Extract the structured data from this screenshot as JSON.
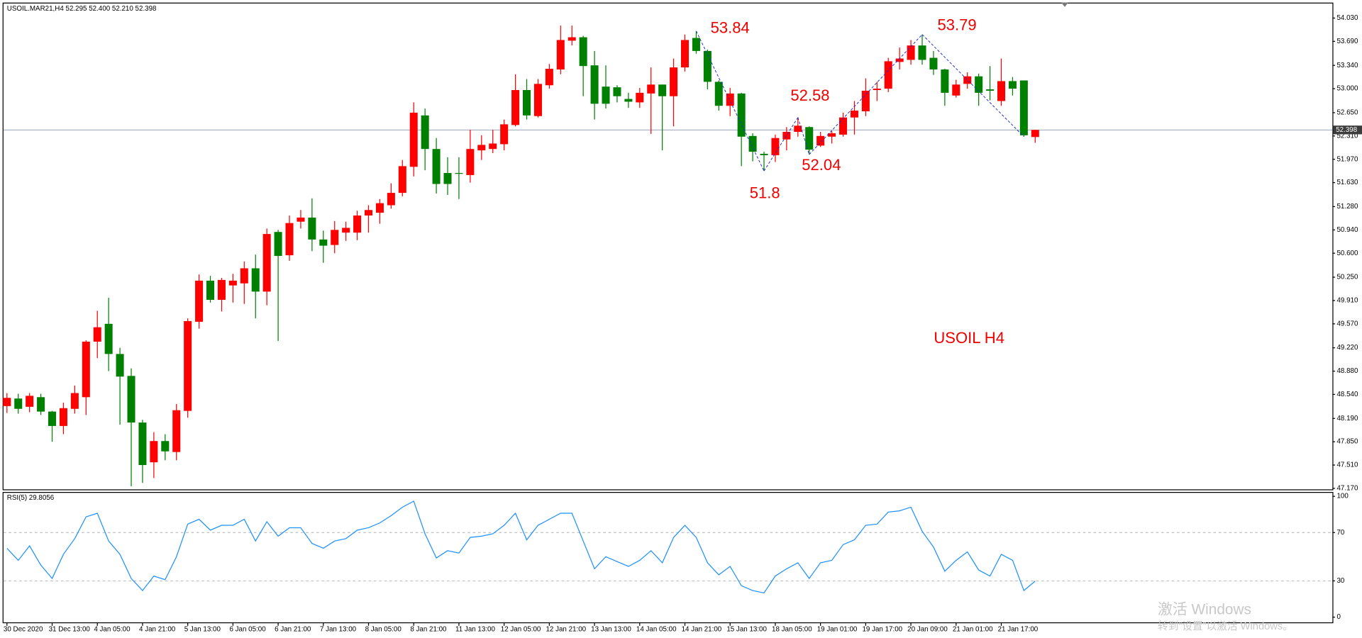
{
  "chart_data": [
    {
      "type": "candlestick",
      "title": "USOIL.MAR21,H4  52.295 52.400 52.210 52.398",
      "categories": [
        "30 Dec 2020",
        null,
        null,
        null,
        "31 Dec 13:00",
        null,
        null,
        null,
        "4 Jan 05:00",
        null,
        null,
        null,
        "4 Jan 21:00",
        null,
        null,
        null,
        "5 Jan 13:00",
        null,
        null,
        null,
        "6 Jan 05:00",
        null,
        null,
        null,
        "6 Jan 21:00",
        null,
        null,
        null,
        "7 Jan 13:00",
        null,
        null,
        null,
        "8 Jan 05:00",
        null,
        null,
        null,
        "8 Jan 21:00",
        null,
        null,
        null,
        "11 Jan 13:00",
        null,
        null,
        null,
        "12 Jan 05:00",
        null,
        null,
        null,
        "12 Jan 21:00",
        null,
        null,
        null,
        "13 Jan 13:00",
        null,
        null,
        null,
        "14 Jan 05:00",
        null,
        null,
        null,
        "14 Jan 21:00",
        null,
        null,
        null,
        "15 Jan 13:00",
        null,
        null,
        null,
        "18 Jan 05:00",
        null,
        null,
        null,
        "19 Jan 01:00",
        null,
        null,
        null,
        "19 Jan 17:00",
        null,
        null,
        null,
        "20 Jan 09:00",
        null,
        null,
        null,
        "21 Jan 01:00",
        null,
        null,
        null,
        "21 Jan 17:00",
        null,
        null,
        null
      ],
      "open": [
        48.37,
        48.48,
        48.36,
        48.5,
        48.29,
        48.08,
        48.33,
        48.5,
        49.31,
        49.57,
        49.13,
        48.81,
        48.13,
        47.55,
        47.86,
        47.7,
        48.3,
        49.6,
        50.2,
        49.92,
        50.13,
        50.16,
        50.38,
        50.04,
        50.91,
        50.57,
        51.06,
        51.12,
        50.8,
        50.72,
        50.9,
        50.9,
        51.15,
        51.19,
        51.3,
        51.48,
        51.86,
        52.61,
        52.12,
        51.77,
        51.77,
        51.74,
        52.1,
        52.12,
        52.19,
        52.47,
        52.98,
        52.6,
        53.05,
        53.28,
        53.7,
        53.75,
        53.34,
        53.03,
        53.02,
        52.85,
        52.8,
        52.93,
        53.06,
        52.89,
        53.31,
        53.74,
        53.55,
        53.1,
        52.75,
        52.93,
        52.31,
        52.05,
        52.03,
        52.26,
        52.37,
        52.44,
        52.17,
        52.3,
        52.33,
        52.58,
        52.67,
        52.98,
        53.0,
        53.39,
        53.42,
        53.63,
        53.45,
        53.28,
        52.9,
        53.07,
        53.18,
        52.99,
        52.82,
        53.11,
        53.12,
        52.295
      ],
      "high": [
        48.56,
        48.55,
        48.56,
        48.55,
        48.3,
        48.42,
        48.67,
        49.33,
        49.76,
        49.95,
        49.22,
        48.92,
        48.17,
        47.99,
        47.96,
        48.4,
        49.65,
        50.29,
        50.27,
        50.24,
        50.3,
        50.48,
        50.58,
        50.96,
        50.94,
        51.15,
        51.23,
        51.4,
        50.93,
        51.07,
        51.06,
        51.22,
        51.3,
        51.39,
        51.62,
        51.96,
        52.8,
        52.71,
        52.28,
        52.0,
        52.0,
        52.4,
        52.32,
        52.4,
        52.55,
        53.21,
        53.14,
        53.14,
        53.36,
        53.92,
        53.92,
        53.77,
        53.55,
        53.34,
        53.05,
        52.94,
        53.01,
        53.31,
        53.06,
        53.44,
        53.79,
        53.84,
        53.57,
        53.12,
        53.01,
        52.94,
        52.35,
        52.08,
        52.33,
        52.44,
        52.58,
        52.45,
        52.37,
        52.38,
        52.65,
        52.82,
        53.15,
        53.1,
        53.45,
        53.6,
        53.71,
        53.79,
        53.55,
        53.29,
        53.13,
        53.24,
        53.22,
        53.33,
        53.44,
        53.17,
        53.12,
        52.4
      ],
      "low": [
        48.27,
        48.26,
        48.28,
        48.24,
        47.85,
        47.96,
        48.26,
        48.24,
        49.07,
        48.88,
        48.1,
        47.2,
        47.25,
        47.32,
        47.58,
        47.58,
        48.2,
        49.5,
        49.88,
        49.75,
        49.88,
        49.86,
        49.65,
        49.84,
        49.32,
        50.49,
        50.96,
        50.63,
        50.46,
        50.6,
        50.78,
        50.79,
        50.9,
        51.03,
        51.25,
        51.43,
        51.72,
        51.81,
        51.47,
        51.45,
        51.39,
        51.63,
        51.96,
        52.06,
        52.1,
        52.45,
        52.55,
        52.58,
        53.0,
        53.21,
        53.63,
        52.89,
        52.55,
        52.71,
        52.8,
        52.72,
        52.72,
        52.34,
        52.1,
        52.45,
        53.25,
        53.51,
        52.99,
        52.68,
        52.6,
        51.87,
        51.94,
        51.8,
        51.93,
        52.1,
        52.3,
        52.04,
        52.15,
        52.2,
        52.3,
        52.33,
        52.6,
        52.82,
        52.95,
        53.28,
        53.35,
        53.35,
        53.2,
        52.75,
        52.87,
        53.0,
        52.75,
        52.83,
        52.75,
        52.9,
        52.3,
        52.21
      ],
      "close": [
        48.49,
        48.33,
        48.52,
        48.29,
        48.08,
        48.34,
        48.56,
        49.31,
        49.52,
        49.13,
        48.8,
        48.13,
        47.51,
        47.86,
        47.71,
        48.31,
        49.61,
        50.2,
        49.92,
        50.21,
        50.2,
        50.38,
        50.04,
        50.88,
        50.56,
        51.04,
        51.12,
        50.8,
        50.71,
        50.94,
        50.97,
        51.15,
        51.23,
        51.33,
        51.48,
        51.87,
        52.65,
        52.12,
        51.61,
        51.61,
        51.76,
        52.12,
        52.18,
        52.2,
        52.48,
        52.98,
        52.61,
        53.07,
        53.29,
        53.71,
        53.75,
        53.33,
        52.78,
        52.78,
        52.89,
        52.81,
        52.94,
        53.06,
        52.89,
        53.31,
        53.71,
        53.55,
        53.1,
        52.75,
        52.93,
        52.3,
        52.08,
        52.03,
        52.28,
        52.37,
        52.46,
        52.11,
        52.31,
        52.35,
        52.58,
        52.68,
        52.97,
        53.0,
        53.4,
        53.44,
        53.63,
        53.42,
        53.28,
        52.94,
        53.06,
        53.18,
        52.94,
        52.97,
        53.11,
        53.0,
        52.32,
        52.398
      ],
      "up_color": "#ff0000",
      "down_color": "#008000",
      "ylim": [
        47.13,
        54.23
      ],
      "yticks": [
        {
          "value": 54.03,
          "label": "54.030"
        },
        {
          "value": 53.69,
          "label": "53.690"
        },
        {
          "value": 53.34,
          "label": "53.340"
        },
        {
          "value": 53.0,
          "label": "53.000"
        },
        {
          "value": 52.65,
          "label": "52.650"
        },
        {
          "value": 52.31,
          "label": "52.310"
        },
        {
          "value": 51.97,
          "label": "51.970"
        },
        {
          "value": 51.63,
          "label": "51.630"
        },
        {
          "value": 51.28,
          "label": "51.280"
        },
        {
          "value": 50.94,
          "label": "50.940"
        },
        {
          "value": 50.6,
          "label": "50.600"
        },
        {
          "value": 50.25,
          "label": "50.250"
        },
        {
          "value": 49.91,
          "label": "49.910"
        },
        {
          "value": 49.57,
          "label": "49.570"
        },
        {
          "value": 49.22,
          "label": "49.220"
        },
        {
          "value": 48.88,
          "label": "48.880"
        },
        {
          "value": 48.54,
          "label": "48.540"
        },
        {
          "value": 48.19,
          "label": "48.190"
        },
        {
          "value": 47.85,
          "label": "47.850"
        },
        {
          "value": 47.51,
          "label": "47.510"
        },
        {
          "value": 47.17,
          "label": "47.170"
        }
      ],
      "current_price": {
        "value": 52.398,
        "label": "52.398"
      },
      "annotations": [
        "53.84",
        "52.58",
        "52.04",
        "51.8",
        "53.79",
        "USOIL H4"
      ]
    },
    {
      "type": "line",
      "title": "RSI(5) 29.8056",
      "color": "#1e90ff",
      "values": [
        57,
        47,
        59,
        43,
        32,
        52,
        65,
        83,
        86,
        63,
        52,
        32,
        22,
        34,
        31,
        50,
        77,
        81,
        72,
        76,
        76,
        81,
        63,
        79,
        67,
        74,
        74,
        61,
        57,
        63,
        65,
        72,
        74,
        78,
        84,
        91,
        96,
        69,
        49,
        55,
        53,
        66,
        67,
        69,
        76,
        86,
        64,
        76,
        81,
        86,
        86,
        63,
        40,
        50,
        46,
        42,
        47,
        55,
        45,
        66,
        76,
        66,
        45,
        35,
        42,
        26,
        22,
        20,
        34,
        40,
        45,
        32,
        45,
        47,
        60,
        64,
        76,
        77,
        87,
        88,
        91,
        71,
        58,
        38,
        47,
        54,
        39,
        34,
        52,
        47,
        22,
        29.8
      ],
      "ylim": [
        0,
        100
      ],
      "yticks": [
        100,
        70,
        30,
        0
      ],
      "levels": [
        70,
        30
      ]
    }
  ],
  "watermark": [
    "激活 Windows",
    "转到“设置”以激活 Windows。"
  ]
}
